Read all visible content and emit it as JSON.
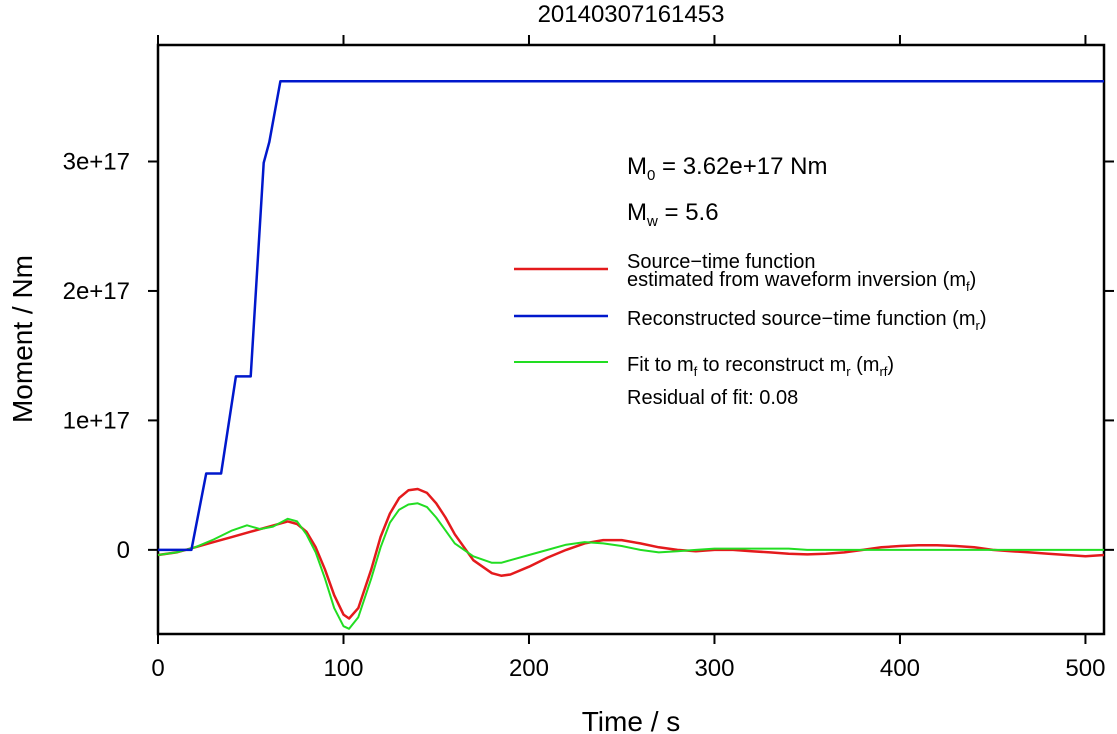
{
  "chart_data": {
    "type": "line",
    "title": "20140307161453",
    "xlabel": "Time / s",
    "ylabel": "Moment / Nm",
    "xlim": [
      0,
      510
    ],
    "ylim": [
      -6.5e+16,
      3.9e+17
    ],
    "x_ticks": [
      {
        "value": 0,
        "label": "0"
      },
      {
        "value": 100,
        "label": "100"
      },
      {
        "value": 200,
        "label": "200"
      },
      {
        "value": 300,
        "label": "300"
      },
      {
        "value": 400,
        "label": "400"
      },
      {
        "value": 500,
        "label": "500"
      }
    ],
    "y_ticks": [
      {
        "value": 0,
        "label": "0"
      },
      {
        "value": 1e+17,
        "label": "1e+17"
      },
      {
        "value": 2e+17,
        "label": "2e+17"
      },
      {
        "value": 3e+17,
        "label": "3e+17"
      }
    ],
    "grid": false,
    "legend_position": "right",
    "annotations": {
      "m0": {
        "prefix": "M",
        "sub": "0",
        "text": " = 3.62e+17 Nm"
      },
      "mw": {
        "prefix": "M",
        "sub": "w",
        "text": " = 5.6"
      },
      "residual": "Residual of fit: 0.08"
    },
    "series": [
      {
        "key": "red",
        "color": "#e41a1c",
        "legend": {
          "line1": "Source−time function",
          "line2": "estimated from waveform inversion (m",
          "sub": "f",
          "tail": ")"
        },
        "x": [
          0,
          10,
          20,
          30,
          40,
          50,
          60,
          70,
          75,
          80,
          85,
          90,
          95,
          100,
          103,
          108,
          115,
          120,
          125,
          130,
          135,
          140,
          145,
          150,
          155,
          160,
          170,
          180,
          185,
          190,
          200,
          210,
          220,
          230,
          240,
          250,
          260,
          270,
          280,
          290,
          300,
          310,
          320,
          330,
          340,
          350,
          360,
          370,
          380,
          390,
          400,
          410,
          420,
          430,
          440,
          450,
          460,
          470,
          480,
          490,
          500,
          510
        ],
        "y": [
          -4000000000000000.0,
          -2000000000000000.0,
          2000000000000000.0,
          6000000000000000.0,
          1e+16,
          1.4e+16,
          1.8e+16,
          2.2e+16,
          2e+16,
          1.4e+16,
          2000000000000000.0,
          -1.5e+16,
          -3.5e+16,
          -5e+16,
          -5.3e+16,
          -4.5e+16,
          -1.5e+16,
          1e+16,
          2.8e+16,
          4e+16,
          4.6e+16,
          4.7e+16,
          4.4e+16,
          3.6e+16,
          2.5e+16,
          1.2e+16,
          -8000000000000000.0,
          -1.8e+16,
          -2e+16,
          -1.9e+16,
          -1.3e+16,
          -6000000000000000.0,
          0,
          5000000000000000.0,
          7500000000000000.0,
          7500000000000000.0,
          5000000000000000.0,
          2000000000000000.0,
          0,
          -1000000000000000.0,
          0,
          0,
          -1000000000000000.0,
          -2000000000000000.0,
          -3000000000000000.0,
          -3500000000000000.0,
          -3000000000000000.0,
          -2000000000000000.0,
          0,
          2000000000000000.0,
          3000000000000000.0,
          3500000000000000.0,
          3500000000000000.0,
          3000000000000000.0,
          2000000000000000.0,
          0,
          -1000000000000000.0,
          -2000000000000000.0,
          -3000000000000000.0,
          -4000000000000000.0,
          -5000000000000000.0,
          -4000000000000000.0
        ]
      },
      {
        "key": "blue",
        "color": "#0018cc",
        "legend": {
          "line1": "",
          "line2": "Reconstructed source−time function (m",
          "sub": "r",
          "tail": ")"
        },
        "x": [
          0,
          18,
          26,
          34,
          42,
          50,
          57,
          60,
          66,
          510
        ],
        "y": [
          0,
          0,
          5.9e+16,
          5.9e+16,
          1.34e+17,
          1.34e+17,
          2.99e+17,
          3.15e+17,
          3.62e+17,
          3.62e+17
        ]
      },
      {
        "key": "green",
        "color": "#22dd22",
        "legend": {
          "line1": "",
          "line2": "Fit to m",
          "sub": "f",
          "mid": " to reconstruct m",
          "sub2": "r",
          "mid2": " (m",
          "sub3": "rf",
          "tail": ")"
        },
        "x": [
          0,
          10,
          20,
          30,
          40,
          48,
          55,
          62,
          70,
          75,
          80,
          85,
          90,
          95,
          100,
          103,
          108,
          115,
          120,
          125,
          130,
          135,
          140,
          145,
          150,
          155,
          160,
          170,
          180,
          185,
          190,
          200,
          210,
          220,
          230,
          240,
          250,
          260,
          270,
          280,
          290,
          300,
          310,
          320,
          330,
          340,
          350,
          360,
          370,
          380,
          390,
          400,
          410,
          420,
          430,
          440,
          450,
          460,
          470,
          480,
          490,
          500,
          510
        ],
        "y": [
          -4000000000000000.0,
          -2000000000000000.0,
          2000000000000000.0,
          8000000000000000.0,
          1.5e+16,
          1.9e+16,
          1.6e+16,
          1.8e+16,
          2.4e+16,
          2.2e+16,
          1.2e+16,
          -2000000000000000.0,
          -2.2e+16,
          -4.5e+16,
          -5.9e+16,
          -6.1e+16,
          -5.2e+16,
          -2.2e+16,
          2000000000000000.0,
          2.1e+16,
          3.1e+16,
          3.5e+16,
          3.6e+16,
          3.3e+16,
          2.5e+16,
          1.5e+16,
          5000000000000000.0,
          -5000000000000000.0,
          -1e+16,
          -1e+16,
          -8000000000000000.0,
          -4000000000000000.0,
          0,
          4000000000000000.0,
          6000000000000000.0,
          5000000000000000.0,
          3000000000000000.0,
          0,
          -2000000000000000.0,
          -1000000000000000.0,
          0,
          1000000000000000.0,
          1000000000000000.0,
          1000000000000000.0,
          1000000000000000.0,
          1000000000000000.0,
          0,
          0,
          0,
          0,
          0,
          0,
          0,
          0,
          0,
          0,
          0,
          0,
          0,
          0,
          0,
          0,
          0
        ]
      }
    ]
  }
}
